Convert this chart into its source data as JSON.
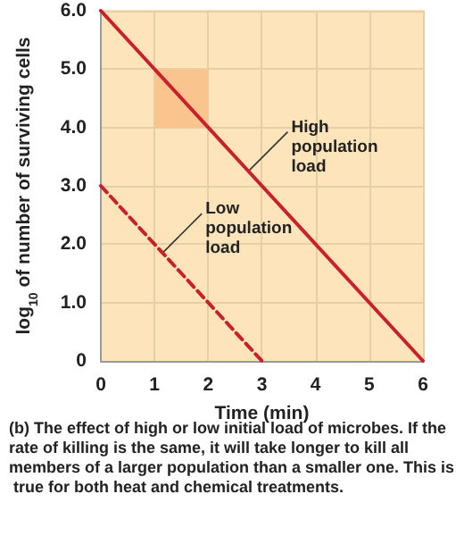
{
  "chart_data": {
    "type": "line",
    "xlabel": "Time (min)",
    "ylabel": "log$_{10}$ of number of surviving cells",
    "xlim": [
      0,
      6
    ],
    "xticks": [
      0,
      1,
      2,
      3,
      4,
      5,
      6
    ],
    "ylim": [
      0,
      6
    ],
    "yticks": [
      {
        "value": 0,
        "label": "0"
      },
      {
        "value": 1,
        "label": "1.0"
      },
      {
        "value": 2,
        "label": "2.0"
      },
      {
        "value": 3,
        "label": "3.0"
      },
      {
        "value": 4,
        "label": "4.0"
      },
      {
        "value": 5,
        "label": "5.0"
      },
      {
        "value": 6,
        "label": "6.0"
      }
    ],
    "grid": true,
    "marker": "none",
    "series": [
      {
        "x": [
          0,
          6
        ],
        "values": [
          6,
          0
        ],
        "color": "#c8202c",
        "line_style": "solid"
      },
      {
        "x": [
          0,
          3
        ],
        "values": [
          3,
          0
        ],
        "color": "#c8202c",
        "line_style": "dashed"
      }
    ],
    "bands": [
      {
        "axis": "x",
        "from": 1,
        "to": 2,
        "color": "#f9c48e"
      }
    ],
    "annotations": [
      {
        "text": "High population load",
        "x": 2.75,
        "y": 3.25
      },
      {
        "text": "Low population load",
        "x": 1.15,
        "y": 1.85
      },
      "(b) The effect of high or low initial load of microbes. If the rate of killing is the same, it will take longer to kill all members of a larger population than a smaller one. This is true for both heat and chemical treatments."
    ]
  }
}
